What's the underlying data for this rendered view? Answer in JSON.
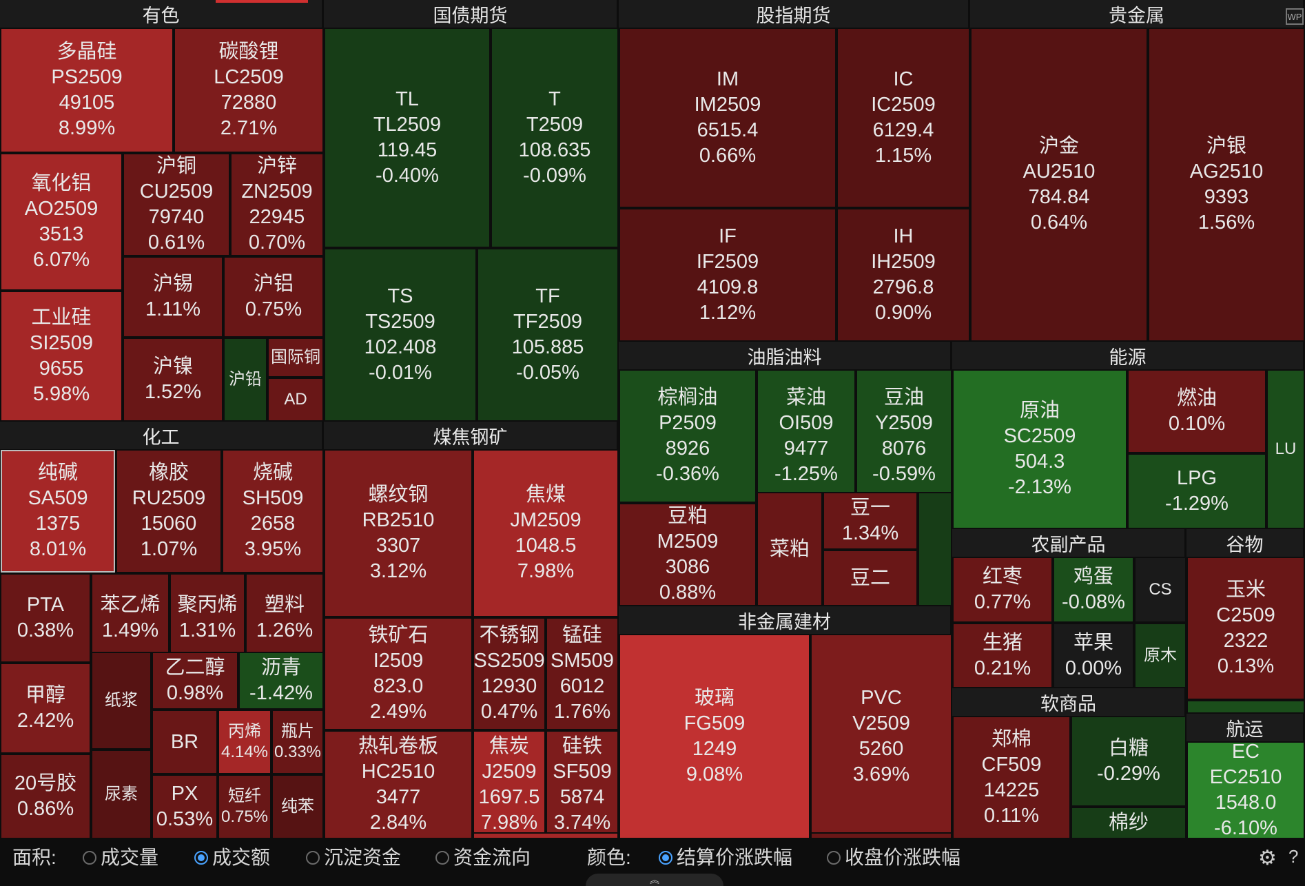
{
  "sectors": [
    {
      "name": "有色",
      "tiles": [
        {
          "name": "多晶硅",
          "code": "PS2509",
          "price": "49105",
          "change": "8.99%",
          "shade": "red-b"
        },
        {
          "name": "碳酸锂",
          "code": "LC2509",
          "price": "72880",
          "change": "2.71%",
          "shade": "red"
        },
        {
          "name": "氧化铝",
          "code": "AO2509",
          "price": "3513",
          "change": "6.07%",
          "shade": "red-b"
        },
        {
          "name": "沪铜",
          "code": "CU2509",
          "price": "79740",
          "change": "0.61%",
          "shade": "red-d"
        },
        {
          "name": "沪锌",
          "code": "ZN2509",
          "price": "22945",
          "change": "0.70%",
          "shade": "red-d"
        },
        {
          "name": "沪锡",
          "change": "1.11%",
          "shade": "red-d"
        },
        {
          "name": "沪铝",
          "change": "0.75%",
          "shade": "red-d"
        },
        {
          "name": "工业硅",
          "code": "SI2509",
          "price": "9655",
          "change": "5.98%",
          "shade": "red-b"
        },
        {
          "name": "沪镍",
          "change": "1.52%",
          "shade": "red-d"
        },
        {
          "name": "沪铅",
          "shade": "green-dd"
        },
        {
          "name": "国际铜",
          "shade": "red-d"
        },
        {
          "name": "AD",
          "shade": "red-d"
        }
      ]
    },
    {
      "name": "国债期货",
      "tiles": [
        {
          "name": "TL",
          "code": "TL2509",
          "price": "119.45",
          "change": "-0.40%",
          "shade": "green-dd"
        },
        {
          "name": "T",
          "code": "T2509",
          "price": "108.635",
          "change": "-0.09%",
          "shade": "green-dd"
        },
        {
          "name": "TS",
          "code": "TS2509",
          "price": "102.408",
          "change": "-0.01%",
          "shade": "green-dd"
        },
        {
          "name": "TF",
          "code": "TF2509",
          "price": "105.885",
          "change": "-0.05%",
          "shade": "green-dd"
        }
      ]
    },
    {
      "name": "股指期货",
      "tiles": [
        {
          "name": "IM",
          "code": "IM2509",
          "price": "6515.4",
          "change": "0.66%",
          "shade": "red-dd"
        },
        {
          "name": "IC",
          "code": "IC2509",
          "price": "6129.4",
          "change": "1.15%",
          "shade": "red-dd"
        },
        {
          "name": "IF",
          "code": "IF2509",
          "price": "4109.8",
          "change": "1.12%",
          "shade": "red-dd"
        },
        {
          "name": "IH",
          "code": "IH2509",
          "price": "2796.8",
          "change": "0.90%",
          "shade": "red-dd"
        }
      ]
    },
    {
      "name": "贵金属",
      "tiles": [
        {
          "name": "沪金",
          "code": "AU2510",
          "price": "784.84",
          "change": "0.64%",
          "shade": "red-dd"
        },
        {
          "name": "沪银",
          "code": "AG2510",
          "price": "9393",
          "change": "1.56%",
          "shade": "red-dd"
        }
      ]
    },
    {
      "name": "化工",
      "tiles": [
        {
          "name": "纯碱",
          "code": "SA509",
          "price": "1375",
          "change": "8.01%",
          "shade": "red-b"
        },
        {
          "name": "橡胶",
          "code": "RU2509",
          "price": "15060",
          "change": "1.07%",
          "shade": "red-d"
        },
        {
          "name": "烧碱",
          "code": "SH509",
          "price": "2658",
          "change": "3.95%",
          "shade": "red"
        },
        {
          "name": "PTA",
          "change": "0.38%",
          "shade": "red-d"
        },
        {
          "name": "苯乙烯",
          "change": "1.49%",
          "shade": "red-d"
        },
        {
          "name": "聚丙烯",
          "change": "1.31%",
          "shade": "red-d"
        },
        {
          "name": "塑料",
          "change": "1.26%",
          "shade": "red-d"
        },
        {
          "name": "甲醇",
          "change": "2.42%",
          "shade": "red"
        },
        {
          "name": "纸浆",
          "shade": "red-dd"
        },
        {
          "name": "乙二醇",
          "change": "0.98%",
          "shade": "red-d"
        },
        {
          "name": "沥青",
          "change": "-1.42%",
          "shade": "green-d"
        },
        {
          "name": "BR",
          "shade": "red-d"
        },
        {
          "name": "丙烯",
          "change": "4.14%",
          "shade": "red-b"
        },
        {
          "name": "瓶片",
          "change": "0.33%",
          "shade": "red-d"
        },
        {
          "name": "20号胶",
          "change": "0.86%",
          "shade": "red-d"
        },
        {
          "name": "尿素",
          "shade": "red-dd"
        },
        {
          "name": "PX",
          "change": "0.53%",
          "shade": "red-d"
        },
        {
          "name": "短纤",
          "change": "0.75%",
          "shade": "red-d"
        },
        {
          "name": "纯苯",
          "shade": "red-dd"
        }
      ]
    },
    {
      "name": "煤焦钢矿",
      "tiles": [
        {
          "name": "螺纹钢",
          "code": "RB2510",
          "price": "3307",
          "change": "3.12%",
          "shade": "red"
        },
        {
          "name": "焦煤",
          "code": "JM2509",
          "price": "1048.5",
          "change": "7.98%",
          "shade": "red-b"
        },
        {
          "name": "铁矿石",
          "code": "I2509",
          "price": "823.0",
          "change": "2.49%",
          "shade": "red"
        },
        {
          "name": "不锈钢",
          "code": "SS2509",
          "price": "12930",
          "change": "0.47%",
          "shade": "red-d"
        },
        {
          "name": "锰硅",
          "code": "SM509",
          "price": "6012",
          "change": "1.76%",
          "shade": "red-d"
        },
        {
          "name": "热轧卷板",
          "code": "HC2510",
          "price": "3477",
          "change": "2.84%",
          "shade": "red"
        },
        {
          "name": "焦炭",
          "code": "J2509",
          "price": "1697.5",
          "change": "7.98%",
          "shade": "red-b"
        },
        {
          "name": "硅铁",
          "code": "SF509",
          "price": "5874",
          "change": "3.74%",
          "shade": "red"
        }
      ]
    },
    {
      "name": "油脂油料",
      "tiles": [
        {
          "name": "棕榈油",
          "code": "P2509",
          "price": "8926",
          "change": "-0.36%",
          "shade": "green-d"
        },
        {
          "name": "菜油",
          "code": "OI509",
          "price": "9477",
          "change": "-1.25%",
          "shade": "green-d"
        },
        {
          "name": "豆油",
          "code": "Y2509",
          "price": "8076",
          "change": "-0.59%",
          "shade": "green-d"
        },
        {
          "name": "豆粕",
          "code": "M2509",
          "price": "3086",
          "change": "0.88%",
          "shade": "red-d"
        },
        {
          "name": "菜粕",
          "shade": "red-d"
        },
        {
          "name": "豆一",
          "change": "1.34%",
          "shade": "red-d"
        },
        {
          "name": "豆二",
          "shade": "red-d"
        }
      ]
    },
    {
      "name": "能源",
      "tiles": [
        {
          "name": "原油",
          "code": "SC2509",
          "price": "504.3",
          "change": "-2.13%",
          "shade": "green"
        },
        {
          "name": "燃油",
          "change": "0.10%",
          "shade": "red-d"
        },
        {
          "name": "LPG",
          "change": "-1.29%",
          "shade": "green-d"
        },
        {
          "name": "LU",
          "shade": "green-d"
        }
      ]
    },
    {
      "name": "非金属建材",
      "tiles": [
        {
          "name": "玻璃",
          "code": "FG509",
          "price": "1249",
          "change": "9.08%",
          "shade": "red-vb"
        },
        {
          "name": "PVC",
          "code": "V2509",
          "price": "5260",
          "change": "3.69%",
          "shade": "red"
        }
      ]
    },
    {
      "name": "农副产品",
      "tiles": [
        {
          "name": "红枣",
          "change": "0.77%",
          "shade": "red-d"
        },
        {
          "name": "鸡蛋",
          "change": "-0.08%",
          "shade": "green-d"
        },
        {
          "name": "CS",
          "shade": "grey"
        },
        {
          "name": "生猪",
          "change": "0.21%",
          "shade": "red-d"
        },
        {
          "name": "苹果",
          "change": "0.00%",
          "shade": "grey"
        },
        {
          "name": "原木",
          "shade": "green-dd"
        }
      ]
    },
    {
      "name": "谷物",
      "tiles": [
        {
          "name": "玉米",
          "code": "C2509",
          "price": "2322",
          "change": "0.13%",
          "shade": "red-d"
        }
      ]
    },
    {
      "name": "软商品",
      "tiles": [
        {
          "name": "郑棉",
          "code": "CF509",
          "price": "14225",
          "change": "0.11%",
          "shade": "red-d"
        },
        {
          "name": "白糖",
          "change": "-0.29%",
          "shade": "green-dd"
        },
        {
          "name": "棉纱",
          "shade": "green-dd"
        }
      ]
    },
    {
      "name": "航运",
      "tiles": [
        {
          "name": "EC",
          "code": "EC2510",
          "price": "1548.0",
          "change": "-6.10%",
          "shade": "green-b"
        }
      ]
    }
  ],
  "footer": {
    "area_label": "面积:",
    "area_options": [
      "成交量",
      "成交额",
      "沉淀资金",
      "资金流向"
    ],
    "area_selected": 1,
    "color_label": "颜色:",
    "color_options": [
      "结算价涨跌幅",
      "收盘价涨跌幅"
    ],
    "color_selected": 0,
    "help": "?"
  },
  "icons": {
    "settings": "gear-icon",
    "collapse": "chevron-up-icon",
    "wp": "wp-icon"
  },
  "wp_text": "WP",
  "collapse_glyph": "︽"
}
